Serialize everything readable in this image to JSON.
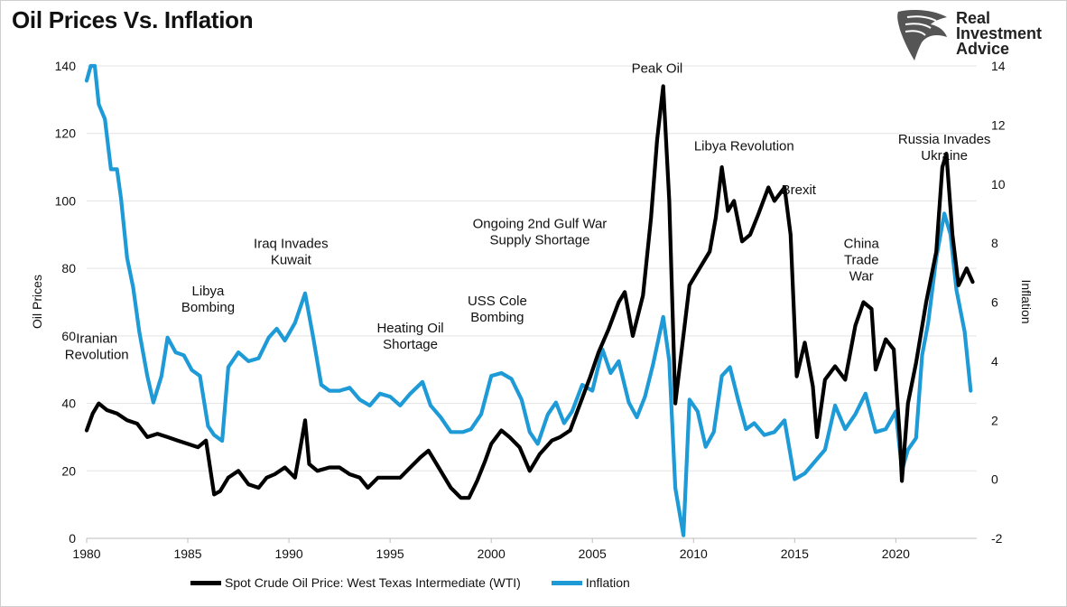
{
  "title": "Oil Prices Vs. Inflation",
  "logo": {
    "lines": [
      "Real",
      "Investment",
      "Advice"
    ]
  },
  "chart_data": {
    "type": "line",
    "title": "Oil Prices Vs. Inflation",
    "xlabel": "",
    "ylabel": "Oil Prices",
    "y2label": "Inflation",
    "xlim": [
      1980,
      2024
    ],
    "ylim": [
      0,
      140
    ],
    "y2lim": [
      -2,
      14
    ],
    "x_ticks": [
      1980,
      1985,
      1990,
      1995,
      2000,
      2005,
      2010,
      2015,
      2020
    ],
    "y_ticks": [
      0,
      20,
      40,
      60,
      80,
      100,
      120,
      140
    ],
    "y2_ticks": [
      -2,
      0,
      2,
      4,
      6,
      8,
      10,
      12,
      14
    ],
    "grid": "horizontal",
    "legend": "bottom",
    "series": [
      {
        "name": "Spot Crude Oil Price: West Texas Intermediate (WTI)",
        "axis": "left",
        "color": "#000000",
        "x": [
          1980.0,
          1980.3,
          1980.6,
          1981.0,
          1981.5,
          1982.0,
          1982.5,
          1983.0,
          1983.5,
          1984.0,
          1984.5,
          1985.0,
          1985.5,
          1985.9,
          1986.3,
          1986.6,
          1987.0,
          1987.5,
          1988.0,
          1988.5,
          1988.9,
          1989.3,
          1989.8,
          1990.3,
          1990.6,
          1990.8,
          1991.0,
          1991.4,
          1992.0,
          1992.5,
          1993.0,
          1993.5,
          1993.9,
          1994.4,
          1995.0,
          1995.5,
          1996.0,
          1996.5,
          1996.9,
          1997.4,
          1998.0,
          1998.5,
          1998.9,
          1999.3,
          1999.7,
          2000.0,
          2000.5,
          2000.9,
          2001.4,
          2001.9,
          2002.4,
          2003.0,
          2003.4,
          2003.9,
          2004.4,
          2004.9,
          2005.3,
          2005.8,
          2006.3,
          2006.6,
          2007.0,
          2007.5,
          2007.9,
          2008.2,
          2008.5,
          2008.8,
          2009.1,
          2009.4,
          2009.8,
          2010.3,
          2010.8,
          2011.1,
          2011.4,
          2011.7,
          2012.0,
          2012.4,
          2012.8,
          2013.2,
          2013.7,
          2014.0,
          2014.5,
          2014.8,
          2015.1,
          2015.5,
          2015.9,
          2016.1,
          2016.5,
          2017.0,
          2017.5,
          2018.0,
          2018.4,
          2018.8,
          2019.0,
          2019.5,
          2019.9,
          2020.2,
          2020.3,
          2020.6,
          2021.0,
          2021.5,
          2022.0,
          2022.3,
          2022.5,
          2022.8,
          2023.1,
          2023.5,
          2023.8
        ],
        "y": [
          32,
          37,
          40,
          38,
          37,
          35,
          34,
          30,
          31,
          30,
          29,
          28,
          27,
          29,
          13,
          14,
          18,
          20,
          16,
          15,
          18,
          19,
          21,
          18,
          28,
          35,
          22,
          20,
          21,
          21,
          19,
          18,
          15,
          18,
          18,
          18,
          21,
          24,
          26,
          21,
          15,
          12,
          12,
          17,
          23,
          28,
          32,
          30,
          27,
          20,
          25,
          29,
          30,
          32,
          40,
          48,
          55,
          62,
          70,
          73,
          60,
          72,
          95,
          118,
          134,
          100,
          40,
          55,
          75,
          80,
          85,
          95,
          110,
          97,
          100,
          88,
          90,
          96,
          104,
          100,
          104,
          90,
          48,
          58,
          45,
          30,
          47,
          51,
          47,
          63,
          70,
          68,
          50,
          59,
          56,
          30,
          17,
          40,
          52,
          70,
          85,
          110,
          114,
          90,
          75,
          80,
          76
        ]
      },
      {
        "name": "Inflation",
        "axis": "right",
        "color": "#1e9bd7",
        "x": [
          1980.0,
          1980.2,
          1980.4,
          1980.6,
          1980.9,
          1981.2,
          1981.5,
          1981.7,
          1982.0,
          1982.3,
          1982.6,
          1983.0,
          1983.3,
          1983.7,
          1984.0,
          1984.4,
          1984.8,
          1985.2,
          1985.6,
          1986.0,
          1986.3,
          1986.7,
          1987.0,
          1987.5,
          1988.0,
          1988.5,
          1989.0,
          1989.4,
          1989.8,
          1990.3,
          1990.8,
          1991.2,
          1991.6,
          1992.0,
          1992.5,
          1993.0,
          1993.5,
          1994.0,
          1994.5,
          1995.0,
          1995.5,
          1996.0,
          1996.6,
          1997.0,
          1997.5,
          1998.0,
          1998.6,
          1999.0,
          1999.5,
          2000.0,
          2000.5,
          2001.0,
          2001.5,
          2001.9,
          2002.3,
          2002.8,
          2003.2,
          2003.6,
          2004.0,
          2004.5,
          2005.0,
          2005.5,
          2005.9,
          2006.3,
          2006.8,
          2007.2,
          2007.6,
          2008.0,
          2008.5,
          2008.8,
          2009.1,
          2009.5,
          2009.8,
          2010.2,
          2010.6,
          2011.0,
          2011.4,
          2011.8,
          2012.2,
          2012.6,
          2013.0,
          2013.5,
          2014.0,
          2014.5,
          2015.0,
          2015.5,
          2016.0,
          2016.5,
          2017.0,
          2017.5,
          2018.0,
          2018.5,
          2019.0,
          2019.5,
          2020.0,
          2020.3,
          2020.6,
          2021.0,
          2021.3,
          2021.6,
          2022.0,
          2022.4,
          2022.7,
          2023.0,
          2023.4,
          2023.7
        ],
        "y": [
          13.5,
          14.5,
          14.0,
          12.7,
          12.2,
          10.5,
          10.5,
          9.5,
          7.5,
          6.5,
          5.0,
          3.5,
          2.6,
          3.5,
          4.8,
          4.3,
          4.2,
          3.7,
          3.5,
          1.8,
          1.5,
          1.3,
          3.8,
          4.3,
          4.0,
          4.1,
          4.8,
          5.1,
          4.7,
          5.3,
          6.3,
          4.8,
          3.2,
          3.0,
          3.0,
          3.1,
          2.7,
          2.5,
          2.9,
          2.8,
          2.5,
          2.9,
          3.3,
          2.5,
          2.1,
          1.6,
          1.6,
          1.7,
          2.2,
          3.5,
          3.6,
          3.4,
          2.7,
          1.6,
          1.2,
          2.2,
          2.6,
          1.9,
          2.3,
          3.2,
          3.0,
          4.4,
          3.6,
          4.0,
          2.6,
          2.1,
          2.8,
          3.9,
          5.5,
          4.0,
          -0.3,
          -1.9,
          2.7,
          2.3,
          1.1,
          1.6,
          3.5,
          3.8,
          2.7,
          1.7,
          1.9,
          1.5,
          1.6,
          2.0,
          0.0,
          0.2,
          0.6,
          1.0,
          2.5,
          1.7,
          2.2,
          2.9,
          1.6,
          1.7,
          2.3,
          0.3,
          1.0,
          1.4,
          4.2,
          5.3,
          7.5,
          9.0,
          8.3,
          6.4,
          5.0,
          3.0
        ]
      }
    ],
    "annotations": [
      {
        "lines": [
          "Iranian",
          "Revolution"
        ],
        "x": 1980.5,
        "y": 58
      },
      {
        "lines": [
          "Libya",
          "Bombing"
        ],
        "x": 1986.0,
        "y": 72
      },
      {
        "lines": [
          "Iraq Invades",
          "Kuwait"
        ],
        "x": 1990.1,
        "y": 86
      },
      {
        "lines": [
          "Heating Oil",
          "Shortage"
        ],
        "x": 1996.0,
        "y": 61
      },
      {
        "lines": [
          "USS Cole",
          "Bombing"
        ],
        "x": 2000.3,
        "y": 69
      },
      {
        "lines": [
          "Ongoing 2nd Gulf War",
          "Supply Shortage"
        ],
        "x": 2002.4,
        "y": 92
      },
      {
        "lines": [
          "Peak Oil"
        ],
        "x": 2008.2,
        "y": 138
      },
      {
        "lines": [
          "Libya Revolution"
        ],
        "x": 2012.5,
        "y": 115
      },
      {
        "lines": [
          "Brexit"
        ],
        "x": 2015.2,
        "y": 102
      },
      {
        "lines": [
          "China",
          "Trade",
          "War"
        ],
        "x": 2018.3,
        "y": 86
      },
      {
        "lines": [
          "Russia Invades",
          "Ukraine"
        ],
        "x": 2022.4,
        "y": 117
      }
    ]
  }
}
